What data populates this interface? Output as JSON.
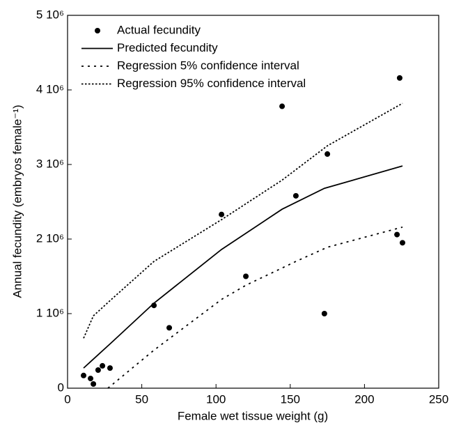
{
  "chart_data": {
    "type": "scatter",
    "xlabel": "Female wet tissue weight (g)",
    "ylabel": "Annual fecundity (embryos female⁻¹)",
    "xlim": [
      0,
      250
    ],
    "xticks": [
      0,
      50,
      100,
      150,
      200,
      250
    ],
    "ylim": [
      0,
      5000000
    ],
    "yticks": [
      0,
      {
        "value": 1000000,
        "label": "1 10⁶"
      },
      {
        "value": 2000000,
        "label": "2 10⁶"
      },
      {
        "value": 3000000,
        "label": "3 10⁶"
      },
      {
        "value": 4000000,
        "label": "4 10⁶"
      },
      {
        "value": 5000000,
        "label": "5 10⁶"
      }
    ],
    "legend": "upper-left",
    "series": [
      {
        "name": "Actual fecundity",
        "style": "markers",
        "color": "#000000",
        "x": [
          10.8,
          15.5,
          17.4,
          20.6,
          23.5,
          28.6,
          58.2,
          68.5,
          103.7,
          120.1,
          144.5,
          153.8,
          175,
          173,
          223.7,
          221.9,
          225.6
        ],
        "values": [
          170000,
          130000,
          56000,
          243000,
          300000,
          270000,
          1110000,
          810000,
          2330000,
          1500000,
          3780000,
          2580000,
          3140000,
          1000000,
          4160000,
          2060000,
          1950000
        ]
      },
      {
        "name": "Predicted fecundity",
        "style": "solid",
        "color": "#000000",
        "x": [
          10.8,
          29.5,
          58.2,
          103.7,
          144.5,
          173,
          225.6
        ],
        "values": [
          270000,
          610000,
          1140000,
          1860000,
          2400000,
          2680000,
          2980000
        ]
      },
      {
        "name": "Regression 5% confidence interval",
        "style": "dotted",
        "color": "#000000",
        "x": [
          27.2,
          58.2,
          103.7,
          120.1,
          153.8,
          175,
          225.6
        ],
        "values": [
          0,
          510000,
          1190000,
          1380000,
          1700000,
          1890000,
          2160000
        ]
      },
      {
        "name": "Regression 95% confidence interval",
        "style": "dense-dotted",
        "color": "#000000",
        "x": [
          10.8,
          17.4,
          29.5,
          58.2,
          103.7,
          144.5,
          175,
          225.6
        ],
        "values": [
          670000,
          970000,
          1190000,
          1700000,
          2260000,
          2790000,
          3250000,
          3820000
        ]
      }
    ]
  }
}
